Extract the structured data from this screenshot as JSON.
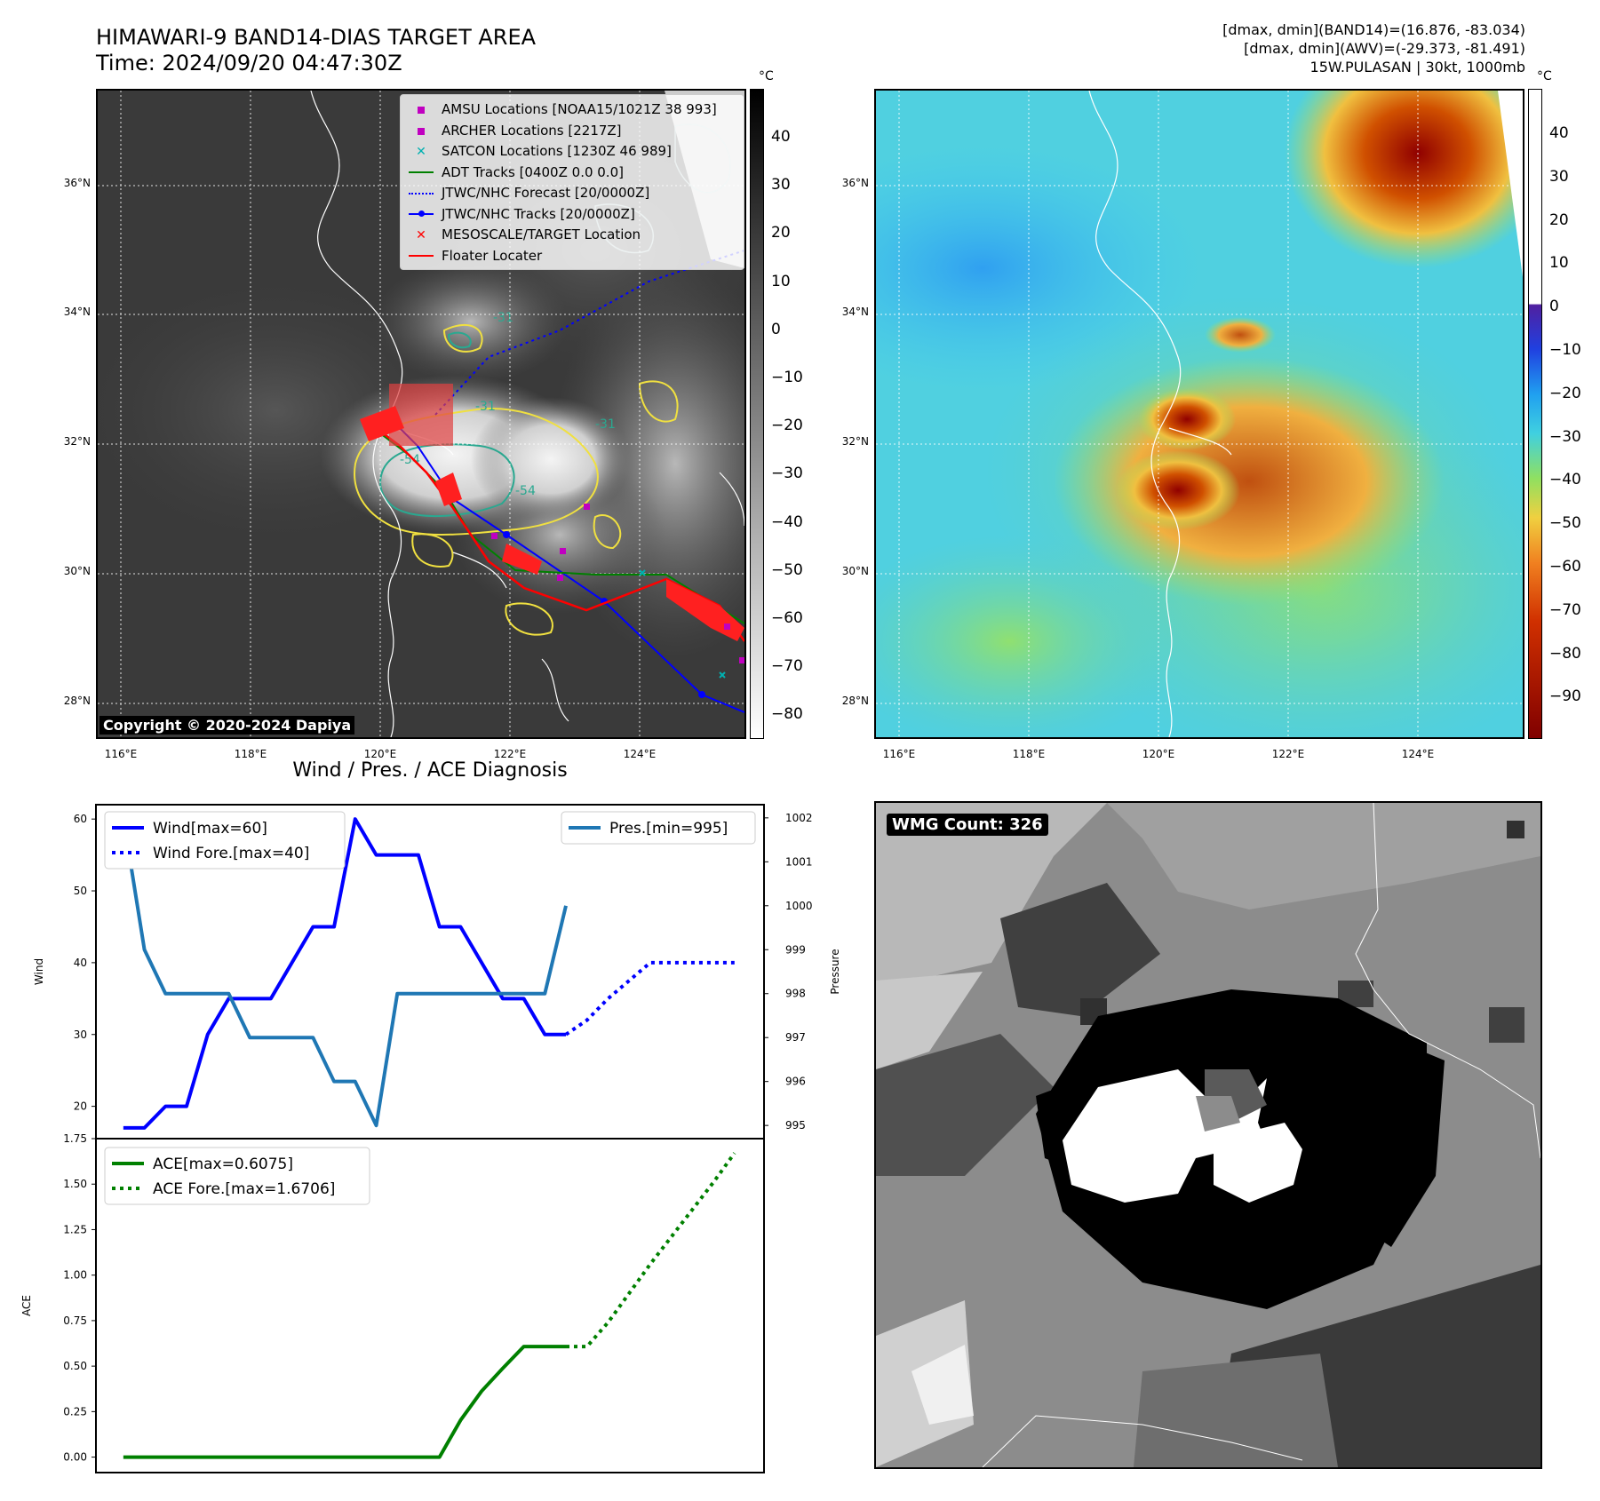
{
  "header": {
    "title_line1": "HIMAWARI-9 BAND14-DIAS TARGET AREA",
    "title_line2": "Time: 2024/09/20 04:47:30Z",
    "info_line1": "[dmax, dmin](BAND14)=(16.876, -83.034)",
    "info_line2": "[dmax, dmin](AWV)=(-29.373, -81.491)",
    "info_line3": "15W.PULASAN | 30kt, 1000mb"
  },
  "ir_panel": {
    "unit": "°C",
    "colorbar_ticks": [
      "40",
      "30",
      "20",
      "10",
      "0",
      "−10",
      "−20",
      "−30",
      "−40",
      "−50",
      "−60",
      "−70",
      "−80"
    ],
    "lat_labels": [
      "36°N",
      "34°N",
      "32°N",
      "30°N",
      "28°N"
    ],
    "lon_labels": [
      "116°E",
      "118°E",
      "120°E",
      "122°E",
      "124°E"
    ],
    "copyright": "Copyright © 2020-2024 Dapiya",
    "contour_labels": [
      "-31",
      "-54",
      "-31",
      "-54",
      "-31"
    ],
    "legend": [
      {
        "label": "AMSU Locations [NOAA15/1021Z 38 993]",
        "color": "#c000c0",
        "kind": "square"
      },
      {
        "label": "ARCHER Locations [2217Z]",
        "color": "#c000c0",
        "kind": "square"
      },
      {
        "label": "SATCON Locations [1230Z 46 989]",
        "color": "#00b0b0",
        "kind": "x"
      },
      {
        "label": "ADT Tracks [0400Z 0.0 0.0]",
        "color": "#008000",
        "kind": "line"
      },
      {
        "label": "JTWC/NHC Forecast [20/0000Z]",
        "color": "#0000ff",
        "kind": "dotted"
      },
      {
        "label": "JTWC/NHC Tracks [20/0000Z]",
        "color": "#0000ff",
        "kind": "linedot"
      },
      {
        "label": "MESOSCALE/TARGET Location",
        "color": "#ff0000",
        "kind": "x"
      },
      {
        "label": "Floater Locater",
        "color": "#ff0000",
        "kind": "line"
      }
    ]
  },
  "awv_panel": {
    "unit": "°C",
    "colorbar_ticks": [
      "40",
      "30",
      "20",
      "10",
      "0",
      "−10",
      "−20",
      "−30",
      "−40",
      "−50",
      "−60",
      "−70",
      "−80",
      "−90"
    ],
    "lat_labels": [
      "36°N",
      "34°N",
      "32°N",
      "30°N",
      "28°N"
    ],
    "lon_labels": [
      "116°E",
      "118°E",
      "120°E",
      "122°E",
      "124°E"
    ]
  },
  "wmg_panel": {
    "badge": "WMG Count: 326"
  },
  "chart_data": [
    {
      "type": "line",
      "title": "Wind / Pres. / ACE Diagnosis",
      "ylabel": "Wind",
      "ylabel_right": "Pressure",
      "ylim": [
        15.5,
        62
      ],
      "ylim_right": [
        994.7,
        1002.3
      ],
      "yticks": [
        20,
        30,
        40,
        50,
        60
      ],
      "yticks_right": [
        995,
        996,
        997,
        998,
        999,
        1000,
        1001,
        1002
      ],
      "series": [
        {
          "name": "Wind[max=60]",
          "color": "#0000ff",
          "style": "solid",
          "x": [
            0,
            1,
            2,
            3,
            4,
            5,
            6,
            7,
            8,
            9,
            10,
            11,
            12,
            13,
            14,
            15,
            16,
            17,
            18,
            19,
            20,
            21
          ],
          "values": [
            17,
            17,
            20,
            20,
            30,
            35,
            35,
            35,
            40,
            45,
            45,
            60,
            55,
            55,
            55,
            45,
            45,
            40,
            35,
            35,
            30,
            30
          ]
        },
        {
          "name": "Wind Fore.[max=40]",
          "color": "#0000ff",
          "style": "dotted",
          "x": [
            21,
            22,
            23,
            24,
            25,
            26,
            27,
            28,
            29
          ],
          "values": [
            30,
            32,
            35,
            37.5,
            40,
            40,
            40,
            40,
            40
          ]
        },
        {
          "name": "Pres.[min=995]",
          "color": "#1f77b4",
          "style": "solid",
          "axis": "right",
          "x": [
            0,
            1,
            2,
            3,
            4,
            5,
            6,
            7,
            8,
            9,
            10,
            11,
            12,
            13,
            14,
            15,
            16,
            17,
            18,
            19,
            20,
            21
          ],
          "values": [
            1002,
            999,
            998,
            998,
            998,
            998,
            997,
            997,
            997,
            997,
            996,
            996,
            995,
            998,
            998,
            998,
            998,
            998,
            998,
            998,
            998,
            1000
          ]
        }
      ]
    },
    {
      "type": "line",
      "ylabel": "ACE",
      "ylim": [
        -0.085,
        1.75
      ],
      "yticks": [
        "0.00",
        "0.25",
        "0.50",
        "0.75",
        "1.00",
        "1.25",
        "1.50",
        "1.75"
      ],
      "series": [
        {
          "name": "ACE[max=0.6075]",
          "color": "#008000",
          "style": "solid",
          "x": [
            0,
            1,
            2,
            3,
            4,
            5,
            6,
            7,
            8,
            9,
            10,
            11,
            12,
            13,
            14,
            15,
            16,
            17,
            18,
            19,
            20,
            21
          ],
          "values": [
            0,
            0,
            0,
            0,
            0,
            0,
            0,
            0,
            0,
            0,
            0,
            0,
            0,
            0,
            0,
            0,
            0.2025,
            0.3625,
            0.4875,
            0.6075,
            0.6075,
            0.6075
          ]
        },
        {
          "name": "ACE Fore.[max=1.6706]",
          "color": "#008000",
          "style": "dotted",
          "x": [
            21,
            22,
            23,
            24,
            25,
            26,
            27,
            28,
            29
          ],
          "values": [
            0.6075,
            0.6075,
            0.74,
            0.9,
            1.06,
            1.21,
            1.36,
            1.51,
            1.6706
          ]
        }
      ]
    }
  ]
}
